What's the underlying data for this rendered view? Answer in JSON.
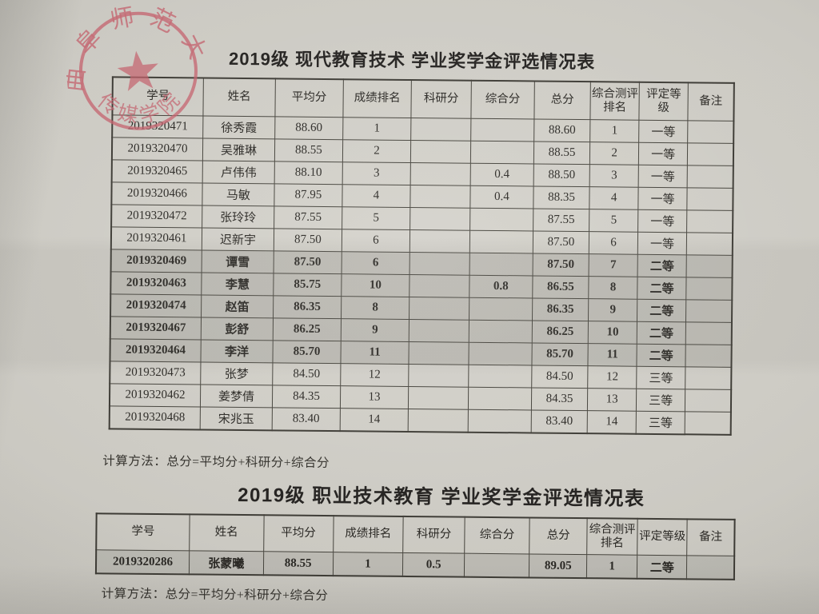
{
  "colors": {
    "stamp_red": "#c4606c",
    "paper": "#c9c7c0",
    "ink": "#2b2925"
  },
  "stamp": {
    "university": "曲阜师范大学",
    "college": "传媒学院"
  },
  "table1": {
    "title": "2019级 现代教育技术 学业奖学金评选情况表",
    "headers": [
      "学号",
      "姓名",
      "平均分",
      "成绩排名",
      "科研分",
      "综合分",
      "总分",
      "综合测评\n排名",
      "评定等级",
      "备注"
    ],
    "rows": [
      [
        "2019320471",
        "徐秀霞",
        "88.60",
        "1",
        "",
        "",
        "88.60",
        "1",
        "一等",
        ""
      ],
      [
        "2019320470",
        "吴雅琳",
        "88.55",
        "2",
        "",
        "",
        "88.55",
        "2",
        "一等",
        ""
      ],
      [
        "2019320465",
        "卢伟伟",
        "88.10",
        "3",
        "",
        "0.4",
        "88.50",
        "3",
        "一等",
        ""
      ],
      [
        "2019320466",
        "马敏",
        "87.95",
        "4",
        "",
        "0.4",
        "88.35",
        "4",
        "一等",
        ""
      ],
      [
        "2019320472",
        "张玲玲",
        "87.55",
        "5",
        "",
        "",
        "87.55",
        "5",
        "一等",
        ""
      ],
      [
        "2019320461",
        "迟新宇",
        "87.50",
        "6",
        "",
        "",
        "87.50",
        "6",
        "一等",
        ""
      ],
      [
        "2019320469",
        "谭雪",
        "87.50",
        "6",
        "",
        "",
        "87.50",
        "7",
        "二等",
        ""
      ],
      [
        "2019320463",
        "李慧",
        "85.75",
        "10",
        "",
        "0.8",
        "86.55",
        "8",
        "二等",
        ""
      ],
      [
        "2019320474",
        "赵笛",
        "86.35",
        "8",
        "",
        "",
        "86.35",
        "9",
        "二等",
        ""
      ],
      [
        "2019320467",
        "彭舒",
        "86.25",
        "9",
        "",
        "",
        "86.25",
        "10",
        "二等",
        ""
      ],
      [
        "2019320464",
        "李洋",
        "85.70",
        "11",
        "",
        "",
        "85.70",
        "11",
        "二等",
        ""
      ],
      [
        "2019320473",
        "张梦",
        "84.50",
        "12",
        "",
        "",
        "84.50",
        "12",
        "三等",
        ""
      ],
      [
        "2019320462",
        "姜梦倩",
        "84.35",
        "13",
        "",
        "",
        "84.35",
        "13",
        "三等",
        ""
      ],
      [
        "2019320468",
        "宋兆玉",
        "83.40",
        "14",
        "",
        "",
        "83.40",
        "14",
        "三等",
        ""
      ]
    ],
    "note": "计算方法：总分=平均分+科研分+综合分"
  },
  "table2": {
    "title": "2019级 职业技术教育 学业奖学金评选情况表",
    "headers": [
      "学号",
      "姓名",
      "平均分",
      "成绩排名",
      "科研分",
      "综合分",
      "总分",
      "综合测评\n排名",
      "评定等级",
      "备注"
    ],
    "rows": [
      [
        "2019320286",
        "张蒙曦",
        "88.55",
        "1",
        "0.5",
        "",
        "89.05",
        "1",
        "二等",
        ""
      ]
    ],
    "note": "计算方法：总分=平均分+科研分+综合分"
  }
}
